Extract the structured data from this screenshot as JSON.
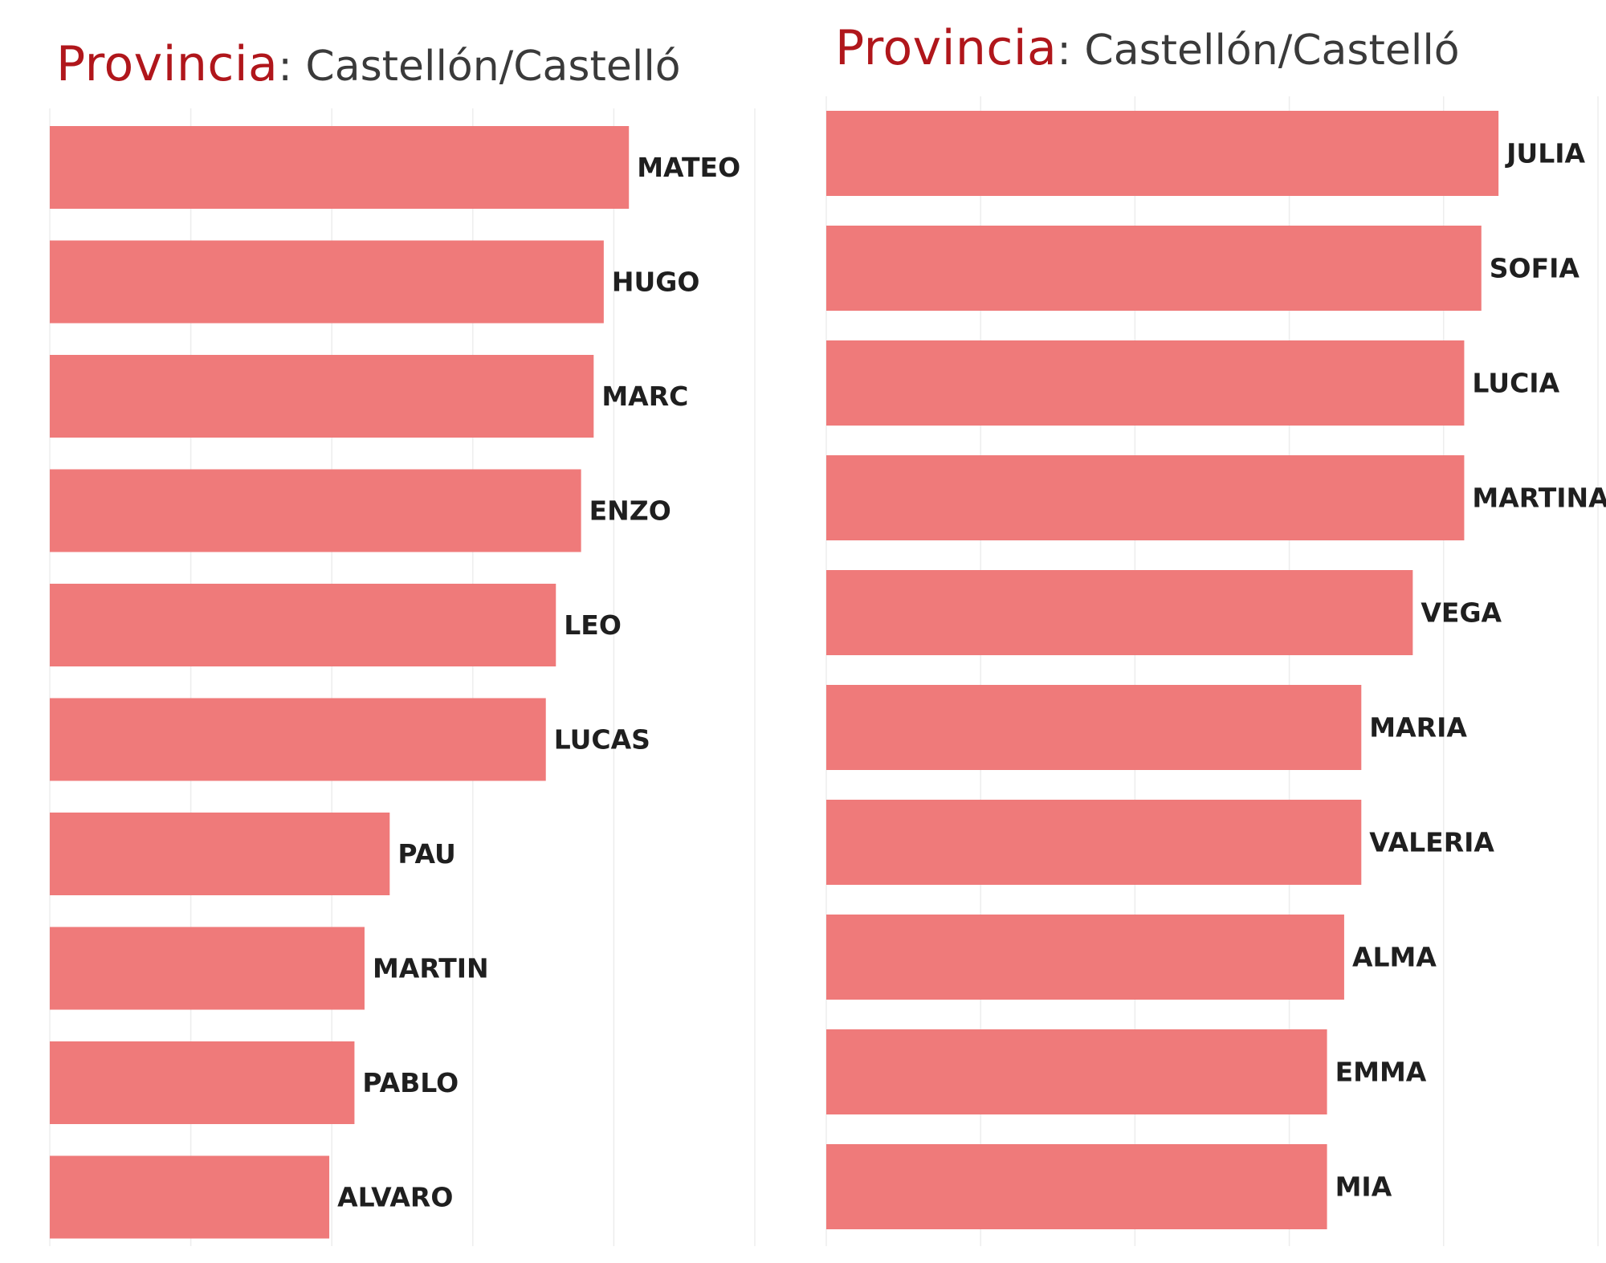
{
  "colors": {
    "bar": "#ef7a7a",
    "title_key": "#b0161b",
    "title_value": "#3a3a3a",
    "grid": "#ededed"
  },
  "chart_data": [
    {
      "type": "bar",
      "orientation": "horizontal",
      "title_key": "Provincia",
      "title_value": "Castellón/Castelló",
      "categories": [
        "MATEO",
        "HUGO",
        "MARC",
        "ENZO",
        "LEO",
        "LUCAS",
        "PAU",
        "MARTIN",
        "PABLO",
        "ALVARO"
      ],
      "values": [
        23,
        22,
        21.6,
        21.1,
        20.1,
        19.7,
        13.5,
        12.5,
        12.1,
        11.1
      ],
      "xlim": [
        0,
        28
      ],
      "grid": true,
      "axis_labels_visible": false
    },
    {
      "type": "bar",
      "orientation": "horizontal",
      "title_key": "Provincia",
      "title_value": "Castellón/Castelló",
      "categories": [
        "JULIA",
        "SOFIA",
        "LUCIA",
        "MARTINA",
        "VEGA",
        "MARIA",
        "VALERIA",
        "ALMA",
        "EMMA",
        "MIA"
      ],
      "values": [
        19.6,
        19.1,
        18.6,
        18.6,
        17.1,
        15.6,
        15.6,
        15.1,
        14.6,
        14.6
      ],
      "xlim": [
        0,
        22.5
      ],
      "grid": true,
      "axis_labels_visible": false
    }
  ]
}
